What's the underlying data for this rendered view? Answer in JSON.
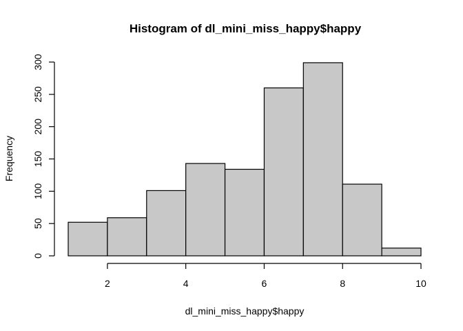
{
  "chart_data": {
    "type": "bar",
    "title": "Histogram of dl_mini_miss_happy$happy",
    "xlabel": "dl_mini_miss_happy$happy",
    "ylabel": "Frequency",
    "bins": [
      {
        "from": 1,
        "to": 2,
        "count": 52
      },
      {
        "from": 2,
        "to": 3,
        "count": 59
      },
      {
        "from": 3,
        "to": 4,
        "count": 101
      },
      {
        "from": 4,
        "to": 5,
        "count": 143
      },
      {
        "from": 5,
        "to": 6,
        "count": 134
      },
      {
        "from": 6,
        "to": 7,
        "count": 260
      },
      {
        "from": 7,
        "to": 8,
        "count": 299
      },
      {
        "from": 8,
        "to": 9,
        "count": 111
      },
      {
        "from": 9,
        "to": 10,
        "count": 12
      }
    ],
    "xticks": [
      2,
      4,
      6,
      8,
      10
    ],
    "yticks": [
      0,
      50,
      100,
      150,
      200,
      250,
      300
    ],
    "xlim": [
      1,
      10
    ],
    "ylim": [
      0,
      300
    ],
    "bar_fill": "#c8c8c8",
    "bar_stroke": "#000000",
    "grid": false,
    "legend": "none"
  }
}
